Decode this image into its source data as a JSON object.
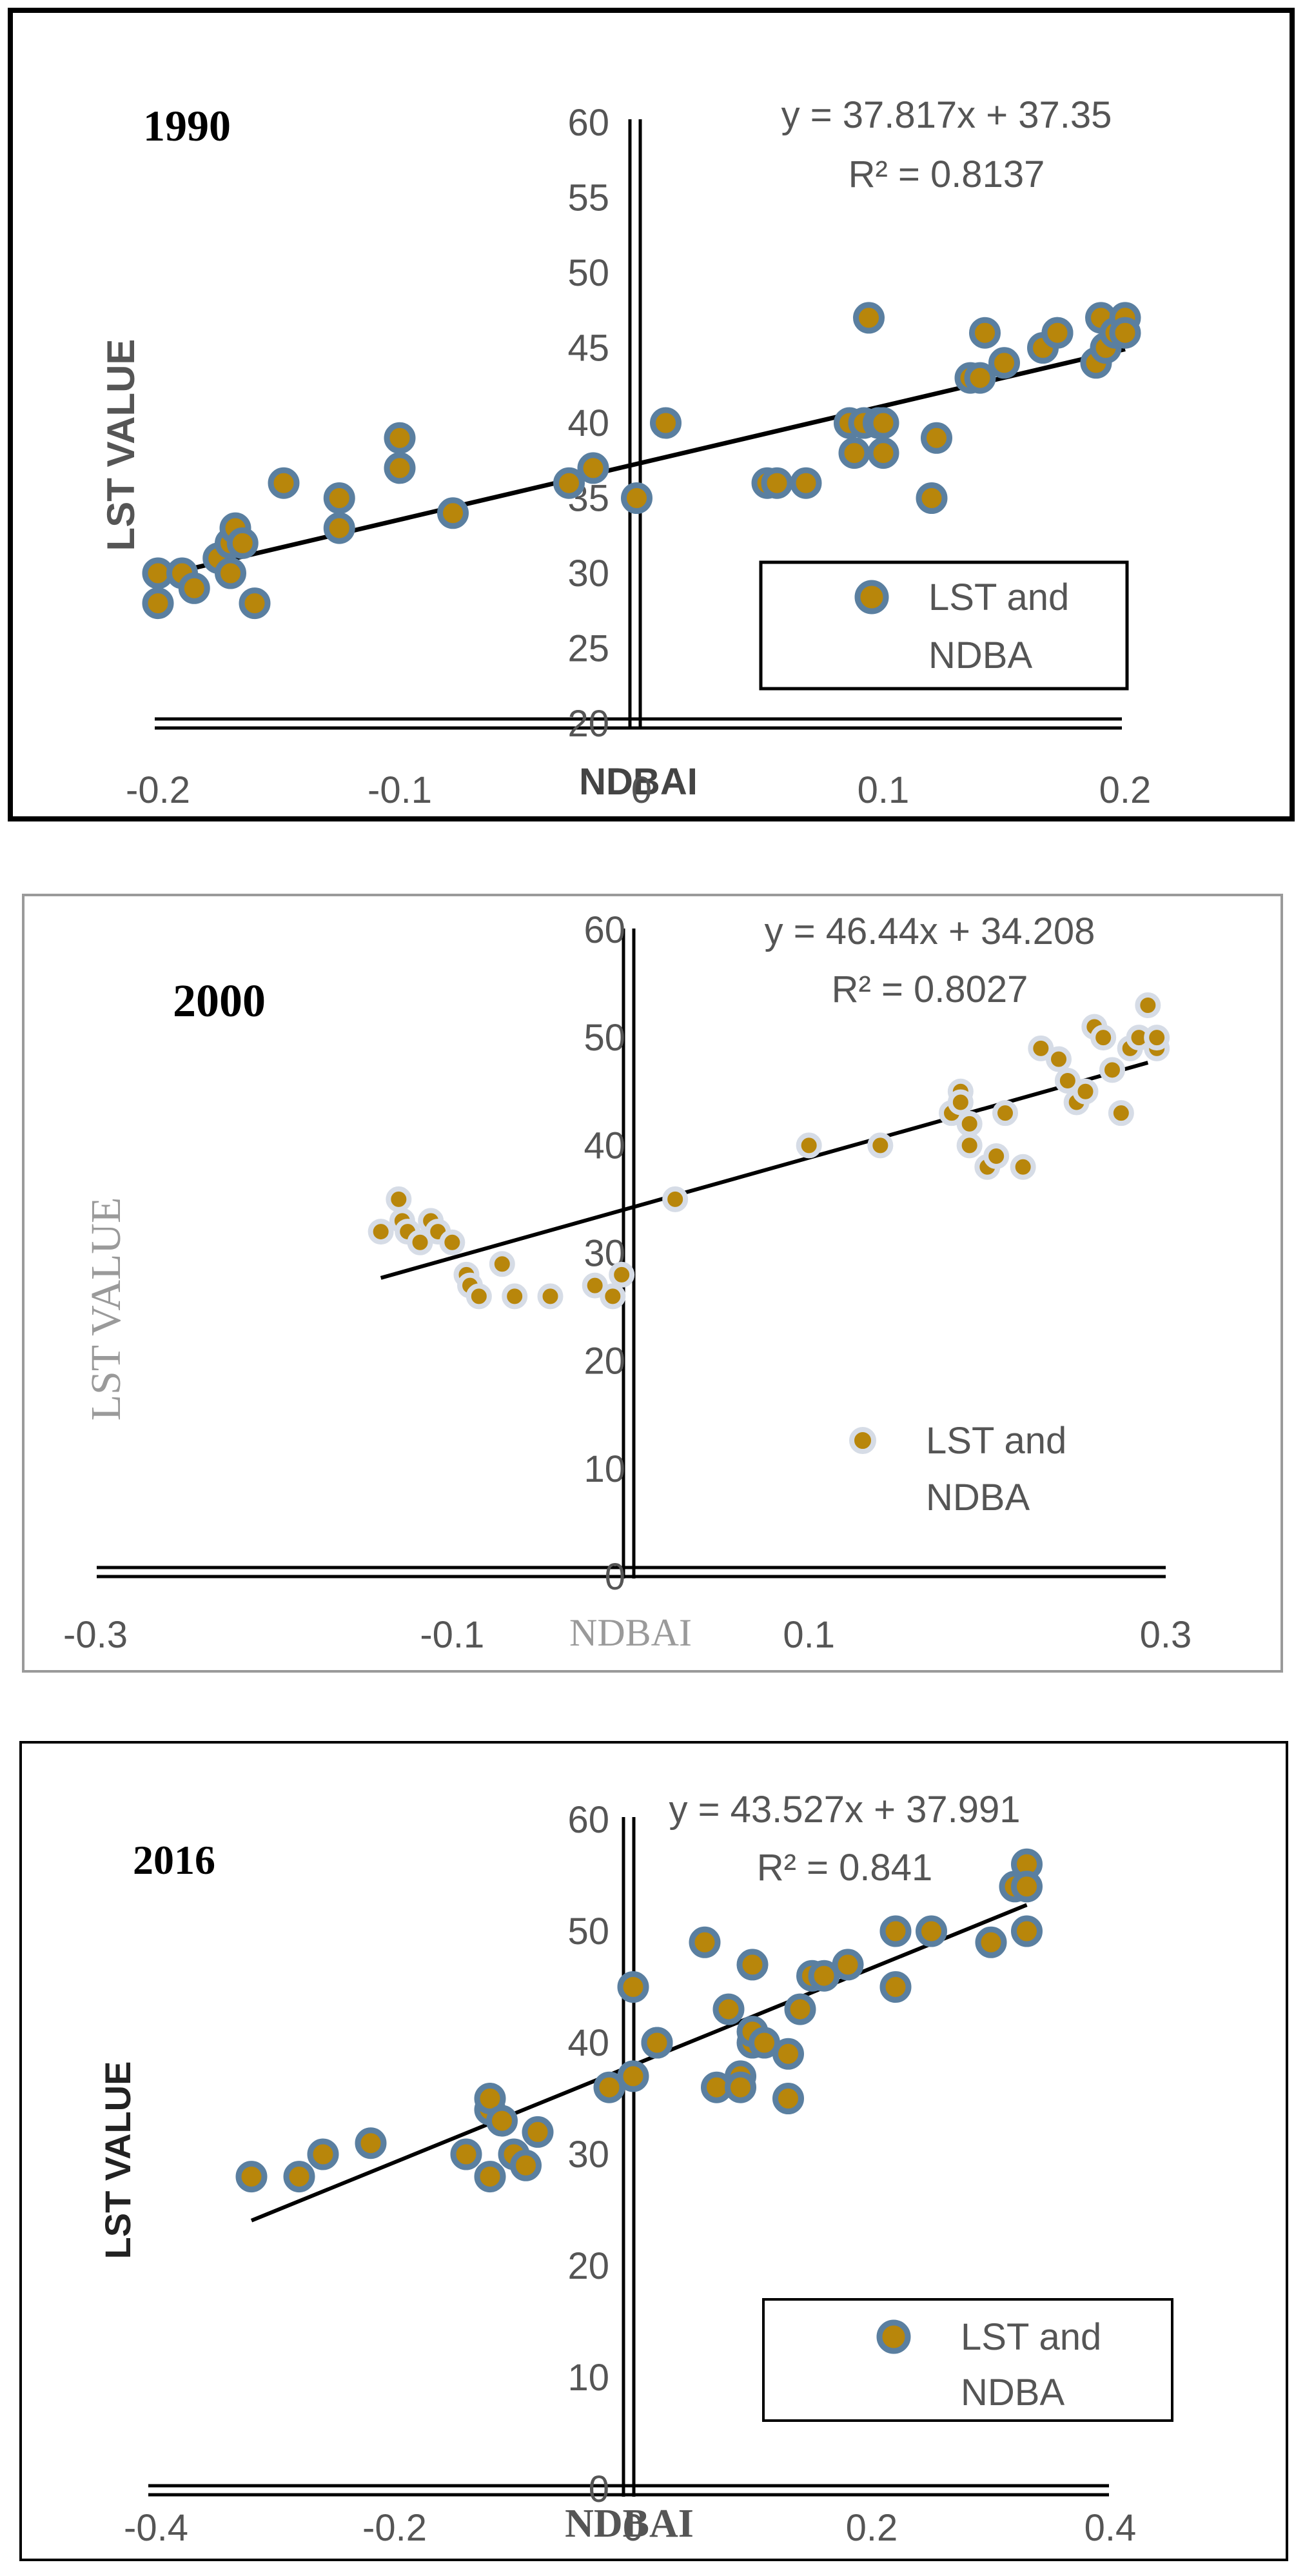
{
  "colors": {
    "marker_fill": "#b8860b",
    "marker_ring": "#5a7fa0",
    "marker_ring_2000": "#d6dce6",
    "trend": "#000000",
    "axis": "#000000",
    "tick_text": "#555555"
  },
  "chart_data": [
    {
      "type": "scatter",
      "year_label": "1990",
      "ylabel": "LST  VALUE",
      "xlabel": "NDBAI",
      "xlim": [
        -0.2,
        0.2
      ],
      "ylim": [
        20,
        60
      ],
      "x_ticks": [
        "-0.2",
        "-0.1",
        "0",
        "0.1",
        "0.2"
      ],
      "y_ticks": [
        "20",
        "25",
        "30",
        "35",
        "40",
        "45",
        "50",
        "55",
        "60"
      ],
      "equation": "y = 37.817x + 37.35",
      "r_squared": "R² = 0.8137",
      "legend_line1": "LST and",
      "legend_line2": "NDBA",
      "legend_position": "lower-right",
      "trendline": {
        "slope": 37.817,
        "intercept": 37.35,
        "x_range": [
          -0.2,
          0.2
        ]
      },
      "series": [
        {
          "x": [
            -0.2,
            -0.2,
            -0.19,
            -0.185,
            -0.175,
            -0.17,
            -0.17,
            -0.168,
            -0.165,
            -0.16,
            -0.148,
            -0.125,
            -0.125,
            -0.1,
            -0.1,
            -0.078,
            -0.03,
            -0.02,
            -0.002,
            0.01,
            0.052,
            0.056,
            0.068,
            0.086,
            0.088,
            0.092,
            0.094,
            0.098,
            0.1,
            0.1,
            0.12,
            0.122,
            0.136,
            0.14,
            0.142,
            0.15,
            0.166,
            0.172,
            0.172,
            0.188,
            0.19,
            0.192,
            0.196,
            0.2,
            0.2
          ],
          "y": [
            28,
            30,
            30,
            29,
            31,
            30,
            32,
            33,
            32,
            28,
            36,
            35,
            33,
            39,
            37,
            34,
            36,
            37,
            35,
            40,
            36,
            36,
            36,
            40,
            38,
            40,
            47,
            40,
            38,
            40,
            35,
            39,
            43,
            43,
            46,
            44,
            45,
            46,
            46,
            44,
            47,
            45,
            46,
            47,
            46
          ]
        }
      ]
    },
    {
      "type": "scatter",
      "year_label": "2000",
      "ylabel": "LST VALUE",
      "xlabel": "NDBAI",
      "xlim": [
        -0.3,
        0.3
      ],
      "ylim": [
        0,
        60
      ],
      "x_ticks": [
        "-0.3",
        "-0.1",
        "0.1",
        "0.3"
      ],
      "x_tick_values": [
        -0.3,
        -0.1,
        0.1,
        0.3
      ],
      "y_ticks": [
        "0",
        "10",
        "20",
        "30",
        "40",
        "50",
        "60"
      ],
      "equation": "y = 46.44x + 34.208",
      "r_squared": "R² = 0.8027",
      "legend_line1": "LST and",
      "legend_line2": "NDBA",
      "legend_position": "lower-right",
      "trendline": {
        "slope": 46.44,
        "intercept": 34.208,
        "x_range": [
          -0.14,
          0.29
        ]
      },
      "series": [
        {
          "x": [
            -0.14,
            -0.13,
            -0.128,
            -0.125,
            -0.118,
            -0.112,
            -0.108,
            -0.1,
            -0.092,
            -0.09,
            -0.085,
            -0.072,
            -0.065,
            -0.045,
            -0.02,
            -0.01,
            -0.005,
            0.025,
            0.1,
            0.14,
            0.18,
            0.185,
            0.185,
            0.19,
            0.19,
            0.2,
            0.205,
            0.21,
            0.22,
            0.23,
            0.24,
            0.245,
            0.25,
            0.255,
            0.26,
            0.265,
            0.27,
            0.275,
            0.28,
            0.285,
            0.29,
            0.295,
            0.295
          ],
          "y": [
            32,
            35,
            33,
            32,
            31,
            33,
            32,
            31,
            28,
            27,
            26,
            29,
            26,
            26,
            27,
            26,
            28,
            35,
            40,
            40,
            43,
            45,
            44,
            40,
            42,
            38,
            39,
            43,
            38,
            49,
            48,
            46,
            44,
            45,
            51,
            50,
            47,
            43,
            49,
            50,
            53,
            49,
            50
          ]
        }
      ]
    },
    {
      "type": "scatter",
      "year_label": "2016",
      "ylabel": "LST VALUE",
      "xlabel": "NDBAI",
      "xlim": [
        -0.4,
        0.4
      ],
      "ylim": [
        0,
        60
      ],
      "x_ticks": [
        "-0.4",
        "-0.2",
        "0",
        "0.2",
        "0.4"
      ],
      "y_ticks": [
        "0",
        "10",
        "20",
        "30",
        "40",
        "50",
        "60"
      ],
      "equation": "y = 43.527x + 37.991",
      "r_squared": "R² = 0.841",
      "legend_line1": "LST and",
      "legend_line2": "NDBA",
      "legend_position": "lower-right",
      "trendline": {
        "slope": 43.527,
        "intercept": 37.991,
        "x_range": [
          -0.32,
          0.33
        ]
      },
      "series": [
        {
          "x": [
            -0.32,
            -0.28,
            -0.26,
            -0.22,
            -0.14,
            -0.12,
            -0.12,
            -0.12,
            -0.11,
            -0.1,
            -0.09,
            -0.08,
            -0.02,
            0.0,
            0.0,
            0.02,
            0.02,
            0.06,
            0.07,
            0.08,
            0.09,
            0.09,
            0.1,
            0.1,
            0.1,
            0.11,
            0.13,
            0.13,
            0.14,
            0.15,
            0.16,
            0.18,
            0.22,
            0.22,
            0.25,
            0.3,
            0.32,
            0.33,
            0.33,
            0.33
          ],
          "y": [
            28,
            28,
            30,
            31,
            30,
            28,
            34,
            35,
            33,
            30,
            29,
            32,
            36,
            37,
            45,
            40,
            40,
            49,
            36,
            43,
            37,
            36,
            40,
            47,
            41,
            40,
            35,
            39,
            43,
            46,
            46,
            47,
            45,
            50,
            50,
            49,
            54,
            56,
            54,
            50
          ]
        }
      ]
    }
  ]
}
